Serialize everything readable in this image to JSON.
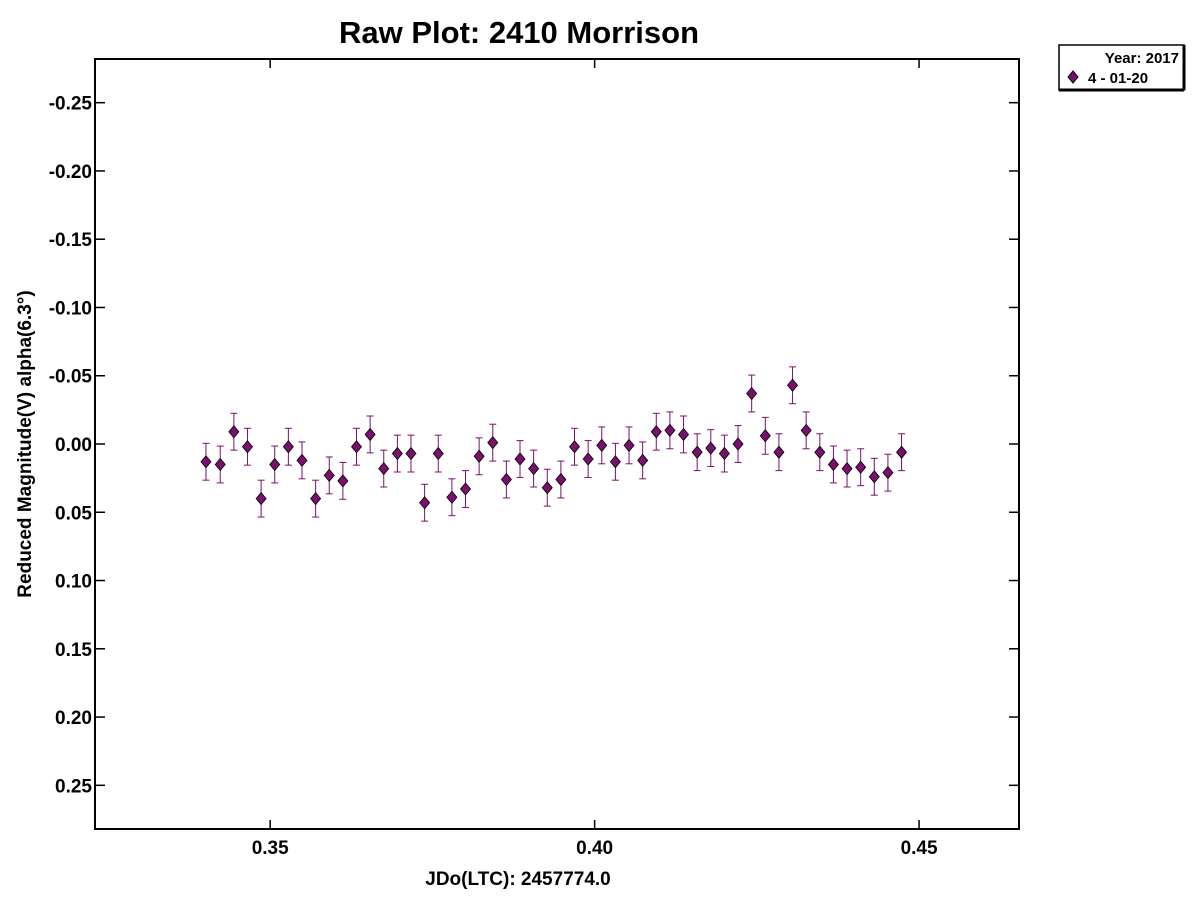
{
  "chart_data": {
    "type": "scatter",
    "title": "Raw Plot: 2410 Morrison",
    "xlabel": "JDo(LTC): 2457774.0",
    "ylabel": "Reduced Magnitude(V) alpha(6.3°)",
    "xlim": [
      0.323,
      0.4654
    ],
    "ylim": [
      0.282,
      -0.282
    ],
    "y_inverted": true,
    "grid": false,
    "legend_position": "top-right-outside",
    "x_ticks": [
      {
        "value": 0.35,
        "label": "0.35"
      },
      {
        "value": 0.4,
        "label": "0.40"
      },
      {
        "value": 0.45,
        "label": "0.45"
      }
    ],
    "y_ticks": [
      {
        "value": -0.25,
        "label": "-0.25"
      },
      {
        "value": -0.2,
        "label": "-0.20"
      },
      {
        "value": -0.15,
        "label": "-0.15"
      },
      {
        "value": -0.1,
        "label": "-0.10"
      },
      {
        "value": -0.05,
        "label": "-0.05"
      },
      {
        "value": 0.0,
        "label": "0.00"
      },
      {
        "value": 0.05,
        "label": "0.05"
      },
      {
        "value": 0.1,
        "label": "0.10"
      },
      {
        "value": 0.15,
        "label": "0.15"
      },
      {
        "value": 0.2,
        "label": "0.20"
      },
      {
        "value": 0.25,
        "label": "0.25"
      }
    ],
    "legend": {
      "header": "Year: 2017",
      "entries": [
        "4 - 01-20"
      ]
    },
    "series": [
      {
        "name": "4 - 01-20",
        "color": "#7a0f6e",
        "marker": "diamond",
        "error": 0.0135,
        "points": [
          {
            "x": 0.3401,
            "y": 0.013
          },
          {
            "x": 0.3423,
            "y": 0.015
          },
          {
            "x": 0.3444,
            "y": -0.009
          },
          {
            "x": 0.3465,
            "y": 0.002
          },
          {
            "x": 0.3486,
            "y": 0.04
          },
          {
            "x": 0.3507,
            "y": 0.015
          },
          {
            "x": 0.3528,
            "y": 0.002
          },
          {
            "x": 0.3549,
            "y": 0.012
          },
          {
            "x": 0.357,
            "y": 0.04
          },
          {
            "x": 0.3591,
            "y": 0.023
          },
          {
            "x": 0.3612,
            "y": 0.027
          },
          {
            "x": 0.3633,
            "y": 0.002
          },
          {
            "x": 0.3654,
            "y": -0.007
          },
          {
            "x": 0.3675,
            "y": 0.018
          },
          {
            "x": 0.3696,
            "y": 0.007
          },
          {
            "x": 0.3717,
            "y": 0.007
          },
          {
            "x": 0.3738,
            "y": 0.043
          },
          {
            "x": 0.3759,
            "y": 0.007
          },
          {
            "x": 0.378,
            "y": 0.039
          },
          {
            "x": 0.3801,
            "y": 0.033
          },
          {
            "x": 0.3822,
            "y": 0.009
          },
          {
            "x": 0.3843,
            "y": -0.001
          },
          {
            "x": 0.3864,
            "y": 0.026
          },
          {
            "x": 0.3885,
            "y": 0.011
          },
          {
            "x": 0.3906,
            "y": 0.018
          },
          {
            "x": 0.3927,
            "y": 0.032
          },
          {
            "x": 0.3948,
            "y": 0.026
          },
          {
            "x": 0.3969,
            "y": 0.002
          },
          {
            "x": 0.399,
            "y": 0.011
          },
          {
            "x": 0.4011,
            "y": 0.001
          },
          {
            "x": 0.4032,
            "y": 0.013
          },
          {
            "x": 0.4053,
            "y": 0.001
          },
          {
            "x": 0.4074,
            "y": 0.012
          },
          {
            "x": 0.4095,
            "y": -0.009
          },
          {
            "x": 0.4116,
            "y": -0.01
          },
          {
            "x": 0.4137,
            "y": -0.007
          },
          {
            "x": 0.4158,
            "y": 0.006
          },
          {
            "x": 0.4179,
            "y": 0.003
          },
          {
            "x": 0.42,
            "y": 0.007
          },
          {
            "x": 0.4221,
            "y": 0.0
          },
          {
            "x": 0.4242,
            "y": -0.037
          },
          {
            "x": 0.4263,
            "y": -0.006
          },
          {
            "x": 0.4284,
            "y": 0.006
          },
          {
            "x": 0.4305,
            "y": -0.043
          },
          {
            "x": 0.4326,
            "y": -0.01
          },
          {
            "x": 0.4347,
            "y": 0.006
          },
          {
            "x": 0.4368,
            "y": 0.015
          },
          {
            "x": 0.4389,
            "y": 0.018
          },
          {
            "x": 0.441,
            "y": 0.017
          },
          {
            "x": 0.4431,
            "y": 0.024
          },
          {
            "x": 0.4452,
            "y": 0.021
          },
          {
            "x": 0.4473,
            "y": 0.006
          }
        ]
      }
    ]
  }
}
